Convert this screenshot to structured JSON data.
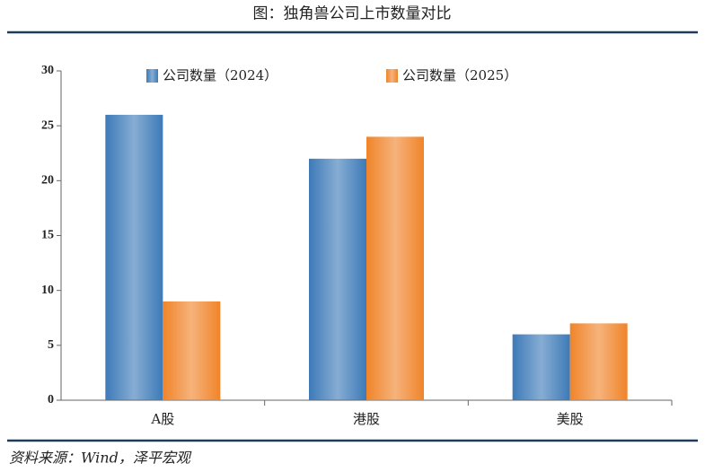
{
  "chart_data": {
    "type": "bar",
    "title": "图：独角兽公司上市数量对比",
    "source": "资料来源：Wind，泽平宏观",
    "categories": [
      "A股",
      "港股",
      "美股"
    ],
    "series": [
      {
        "name": "公司数量（2024）",
        "color": "#3d7ab8",
        "values": [
          26,
          22,
          6
        ]
      },
      {
        "name": "公司数量（2025）",
        "color": "#f0842a",
        "values": [
          9,
          24,
          7
        ]
      }
    ],
    "ylim": [
      0,
      30
    ],
    "yticks": [
      0,
      5,
      10,
      15,
      20,
      25,
      30
    ],
    "legend": "top"
  }
}
